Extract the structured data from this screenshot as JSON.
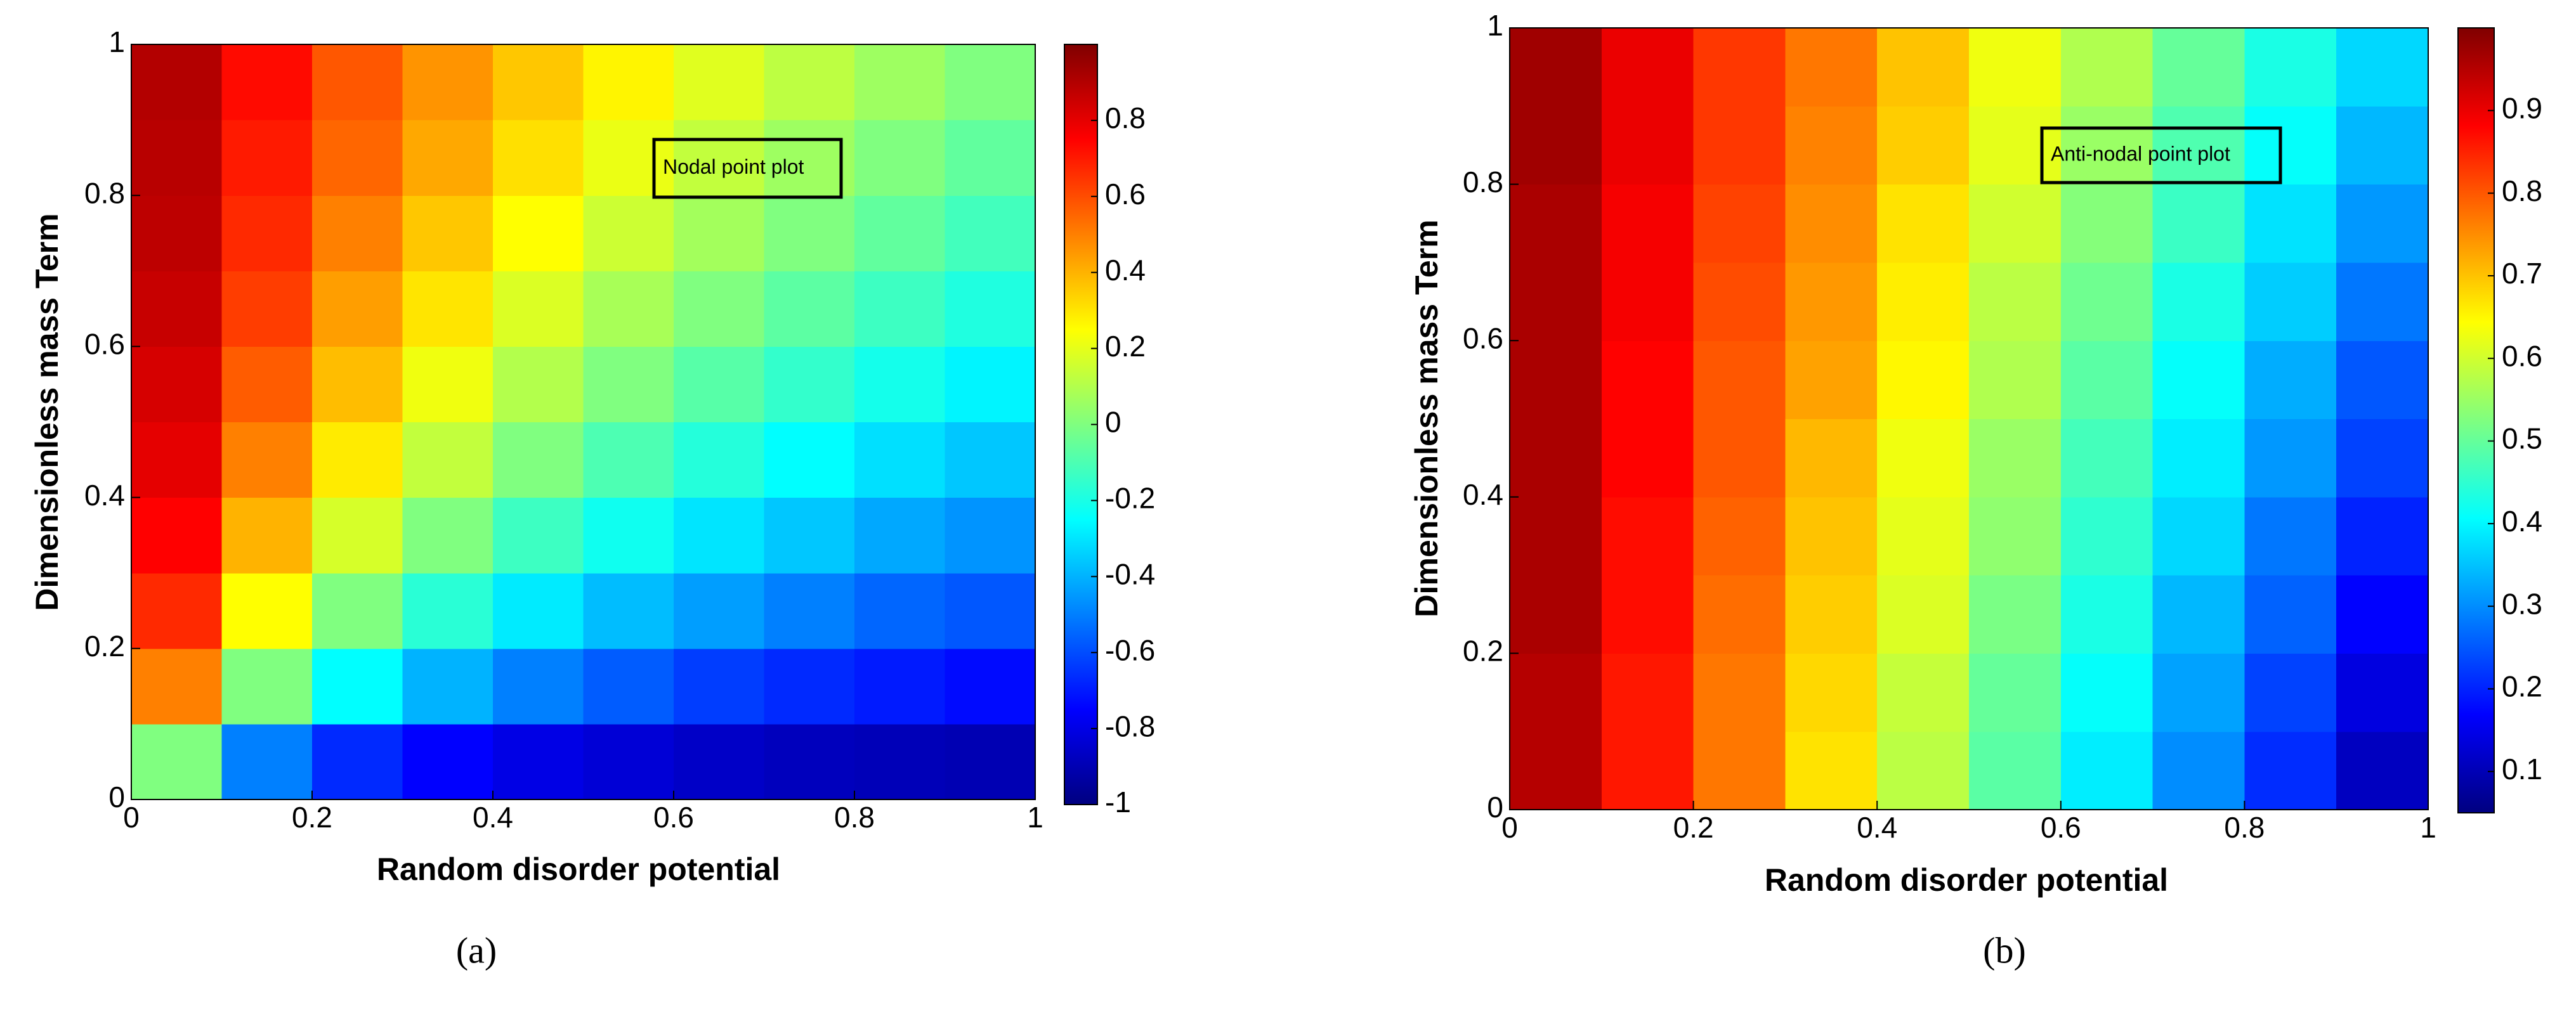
{
  "chart_data": [
    {
      "type": "heatmap",
      "caption": "(a)",
      "annotation": "Nodal point plot",
      "xlabel": "Random disorder potential",
      "ylabel": "Dimensionless mass Term",
      "colormap": "jet",
      "x": [
        0.05,
        0.15,
        0.25,
        0.35,
        0.45,
        0.55,
        0.65,
        0.75,
        0.85,
        0.95
      ],
      "y": [
        0.05,
        0.15,
        0.25,
        0.35,
        0.45,
        0.55,
        0.65,
        0.75,
        0.85,
        0.95
      ],
      "z": [
        [
          0,
          -0.5,
          -0.67,
          -0.75,
          -0.8,
          -0.83,
          -0.86,
          -0.88,
          -0.89,
          -0.9
        ],
        [
          0.5,
          0,
          -0.25,
          -0.4,
          -0.5,
          -0.57,
          -0.63,
          -0.67,
          -0.7,
          -0.73
        ],
        [
          0.67,
          0.25,
          0,
          -0.17,
          -0.29,
          -0.38,
          -0.44,
          -0.5,
          -0.55,
          -0.58
        ],
        [
          0.75,
          0.4,
          0.17,
          0,
          -0.13,
          -0.22,
          -0.3,
          -0.36,
          -0.42,
          -0.46
        ],
        [
          0.8,
          0.5,
          0.29,
          0.13,
          0,
          -0.1,
          -0.18,
          -0.25,
          -0.31,
          -0.36
        ],
        [
          0.83,
          0.57,
          0.38,
          0.22,
          0.1,
          0,
          -0.08,
          -0.15,
          -0.21,
          -0.27
        ],
        [
          0.86,
          0.63,
          0.44,
          0.3,
          0.18,
          0.08,
          0,
          -0.07,
          -0.13,
          -0.19
        ],
        [
          0.88,
          0.67,
          0.5,
          0.36,
          0.25,
          0.15,
          0.07,
          0,
          -0.06,
          -0.12
        ],
        [
          0.89,
          0.7,
          0.55,
          0.42,
          0.31,
          0.21,
          0.13,
          0.06,
          0,
          -0.06
        ],
        [
          0.9,
          0.73,
          0.58,
          0.46,
          0.36,
          0.27,
          0.19,
          0.12,
          0.06,
          0
        ]
      ],
      "xlim": [
        0,
        1
      ],
      "ylim": [
        0,
        1
      ],
      "xticks": [
        0,
        0.2,
        0.4,
        0.6,
        0.8,
        1
      ],
      "yticks": [
        0,
        0.2,
        0.4,
        0.6,
        0.8,
        1
      ],
      "clim": [
        -1,
        1
      ],
      "cticks": [
        -1,
        -0.8,
        -0.6,
        -0.4,
        -0.2,
        0,
        0.2,
        0.4,
        0.6,
        0.8
      ]
    },
    {
      "type": "heatmap",
      "caption": "(b)",
      "annotation": "Anti-nodal point plot",
      "xlabel": "Random disorder potential",
      "ylabel": "Dimensionless mass Term",
      "colormap": "jet",
      "x": [
        0.05,
        0.15,
        0.25,
        0.35,
        0.45,
        0.55,
        0.65,
        0.75,
        0.85,
        0.95
      ],
      "y": [
        0.05,
        0.15,
        0.25,
        0.35,
        0.45,
        0.55,
        0.65,
        0.75,
        0.85,
        0.95
      ],
      "z": [
        [
          0.95,
          0.86,
          0.77,
          0.67,
          0.58,
          0.49,
          0.39,
          0.3,
          0.21,
          0.11
        ],
        [
          0.95,
          0.86,
          0.77,
          0.68,
          0.59,
          0.5,
          0.41,
          0.32,
          0.23,
          0.14
        ],
        [
          0.96,
          0.87,
          0.78,
          0.69,
          0.61,
          0.52,
          0.43,
          0.34,
          0.26,
          0.17
        ],
        [
          0.96,
          0.87,
          0.79,
          0.7,
          0.62,
          0.54,
          0.45,
          0.37,
          0.28,
          0.2
        ],
        [
          0.96,
          0.88,
          0.8,
          0.71,
          0.63,
          0.55,
          0.47,
          0.39,
          0.31,
          0.23
        ],
        [
          0.96,
          0.88,
          0.8,
          0.73,
          0.65,
          0.57,
          0.49,
          0.41,
          0.33,
          0.25
        ],
        [
          0.96,
          0.89,
          0.81,
          0.74,
          0.66,
          0.58,
          0.51,
          0.43,
          0.36,
          0.28
        ],
        [
          0.96,
          0.89,
          0.82,
          0.75,
          0.67,
          0.6,
          0.53,
          0.46,
          0.38,
          0.31
        ],
        [
          0.97,
          0.9,
          0.83,
          0.76,
          0.69,
          0.62,
          0.55,
          0.48,
          0.41,
          0.34
        ],
        [
          0.97,
          0.9,
          0.83,
          0.77,
          0.7,
          0.63,
          0.57,
          0.5,
          0.43,
          0.37
        ]
      ],
      "xlim": [
        0,
        1
      ],
      "ylim": [
        0,
        1
      ],
      "xticks": [
        0,
        0.2,
        0.4,
        0.6,
        0.8,
        1
      ],
      "yticks": [
        0,
        0.2,
        0.4,
        0.6,
        0.8,
        1
      ],
      "clim": [
        0.05,
        1
      ],
      "cticks": [
        0.1,
        0.2,
        0.3,
        0.4,
        0.5,
        0.6,
        0.7,
        0.8,
        0.9
      ]
    }
  ]
}
